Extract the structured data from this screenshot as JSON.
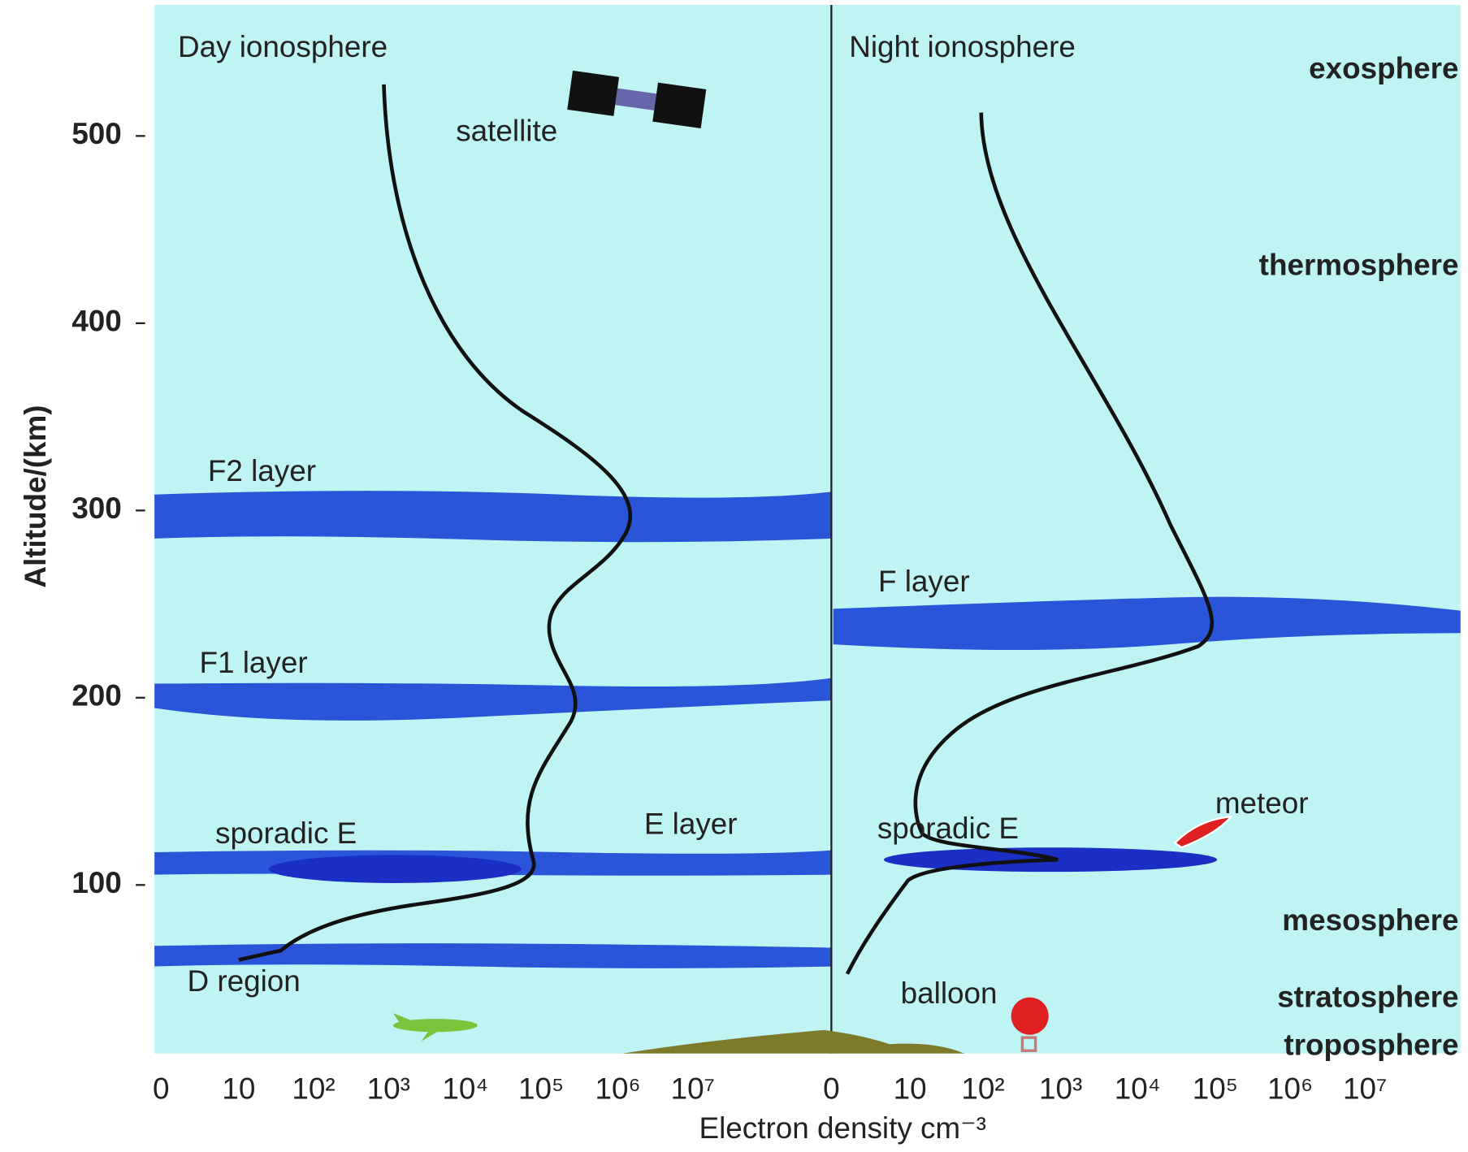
{
  "panels": {
    "day": {
      "title": "Day ionosphere",
      "layers": [
        "F2 layer",
        "F1 layer",
        "sporadic E",
        "E layer",
        "D region"
      ],
      "object": "satellite"
    },
    "night": {
      "title": "Night ionosphere",
      "layers": [
        "F layer",
        "sporadic E"
      ],
      "objects": [
        "balloon",
        "meteor"
      ]
    }
  },
  "y_axis": {
    "label": "Altitude/(km)",
    "ticks": [
      "100",
      "200",
      "300",
      "400",
      "500"
    ]
  },
  "x_axis": {
    "label": "Electron density cm⁻³",
    "day_ticks": [
      "0",
      "10",
      "10²",
      "10³",
      "10⁴",
      "10⁵",
      "10⁶",
      "10⁷"
    ],
    "night_ticks": [
      "0",
      "10",
      "10²",
      "10³",
      "10⁴",
      "10⁵",
      "10⁶",
      "10⁷"
    ]
  },
  "regions": [
    "exosphere",
    "thermosphere",
    "mesosphere",
    "stratosphere",
    "troposphere"
  ]
}
